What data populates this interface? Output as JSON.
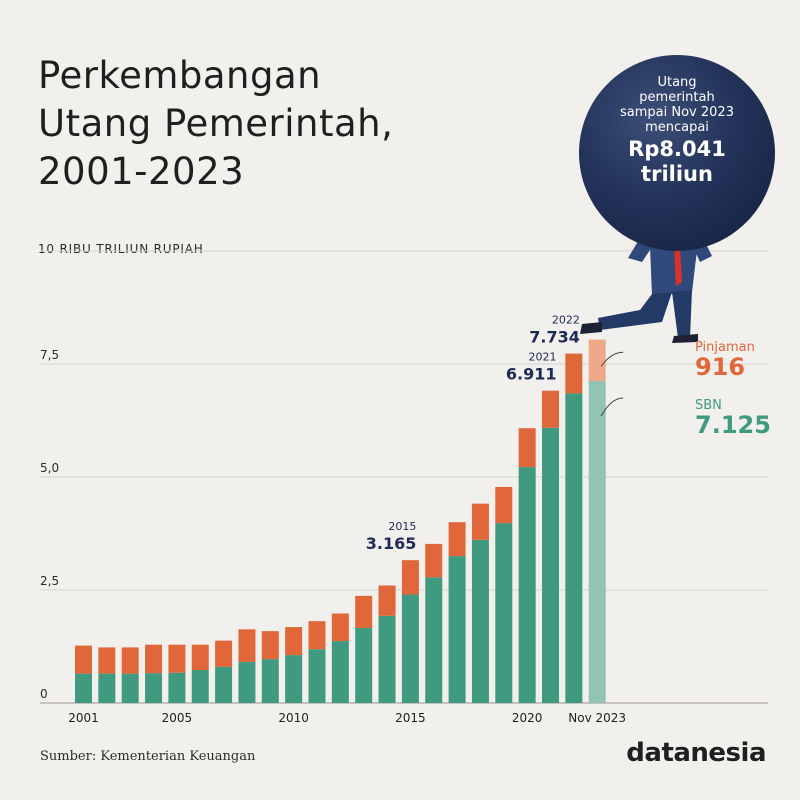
{
  "title_lines": [
    "Perkembangan",
    "Utang Pemerintah,",
    "2001-2023"
  ],
  "unit_label": "10 RIBU TRILIUN RUPIAH",
  "source": "Sumber: Kementerian Keuangan",
  "logo": "datanesia",
  "badge": {
    "caption_lines": [
      "Utang",
      "pemerintah",
      "sampai Nov 2023",
      "mencapai"
    ],
    "value_lines": [
      "Rp8.041",
      "triliun"
    ]
  },
  "latest": {
    "pinjaman_label": "Pinjaman",
    "pinjaman_value": "916",
    "sbn_label": "SBN",
    "sbn_value": "7.125"
  },
  "colors": {
    "sbn": "#3f9a80",
    "pinjaman": "#e0673a",
    "sbn_light": "#92c4b4",
    "pinjaman_light": "#efa88a",
    "label_navy": "#1c2a55",
    "grid": "#d6d3ce"
  },
  "chart_data": {
    "type": "bar",
    "stacked": true,
    "categories": [
      "2001",
      "2002",
      "2003",
      "2004",
      "2005",
      "2006",
      "2007",
      "2008",
      "2009",
      "2010",
      "2011",
      "2012",
      "2013",
      "2014",
      "2015",
      "2016",
      "2017",
      "2018",
      "2019",
      "2020",
      "2021",
      "2022",
      "Nov 2023"
    ],
    "x_tick_labels": [
      "2001",
      "2005",
      "2010",
      "2015",
      "2020",
      "Nov 2023"
    ],
    "series": [
      {
        "name": "SBN",
        "values": [
          0.65,
          0.65,
          0.65,
          0.66,
          0.67,
          0.73,
          0.8,
          0.91,
          0.97,
          1.06,
          1.19,
          1.37,
          1.66,
          1.93,
          2.4,
          2.78,
          3.25,
          3.61,
          3.98,
          5.22,
          6.09,
          6.85,
          7.125
        ]
      },
      {
        "name": "Pinjaman",
        "values": [
          0.62,
          0.58,
          0.58,
          0.63,
          0.62,
          0.56,
          0.58,
          0.72,
          0.62,
          0.62,
          0.62,
          0.61,
          0.71,
          0.67,
          0.76,
          0.74,
          0.75,
          0.8,
          0.8,
          0.86,
          0.82,
          0.88,
          0.916
        ]
      }
    ],
    "ylim": [
      0,
      10
    ],
    "y_ticks": [
      0,
      2.5,
      5.0,
      7.5
    ],
    "y_tick_labels": [
      "0",
      "2,5",
      "5,0",
      "7,5"
    ],
    "grid": true,
    "highlighted_last_bar": true,
    "annotations": [
      {
        "category": "2015",
        "year": "2015",
        "value": "3.165"
      },
      {
        "category": "2021",
        "year": "2021",
        "value": "6.911"
      },
      {
        "category": "2022",
        "year": "2022",
        "value": "7.734"
      }
    ]
  }
}
